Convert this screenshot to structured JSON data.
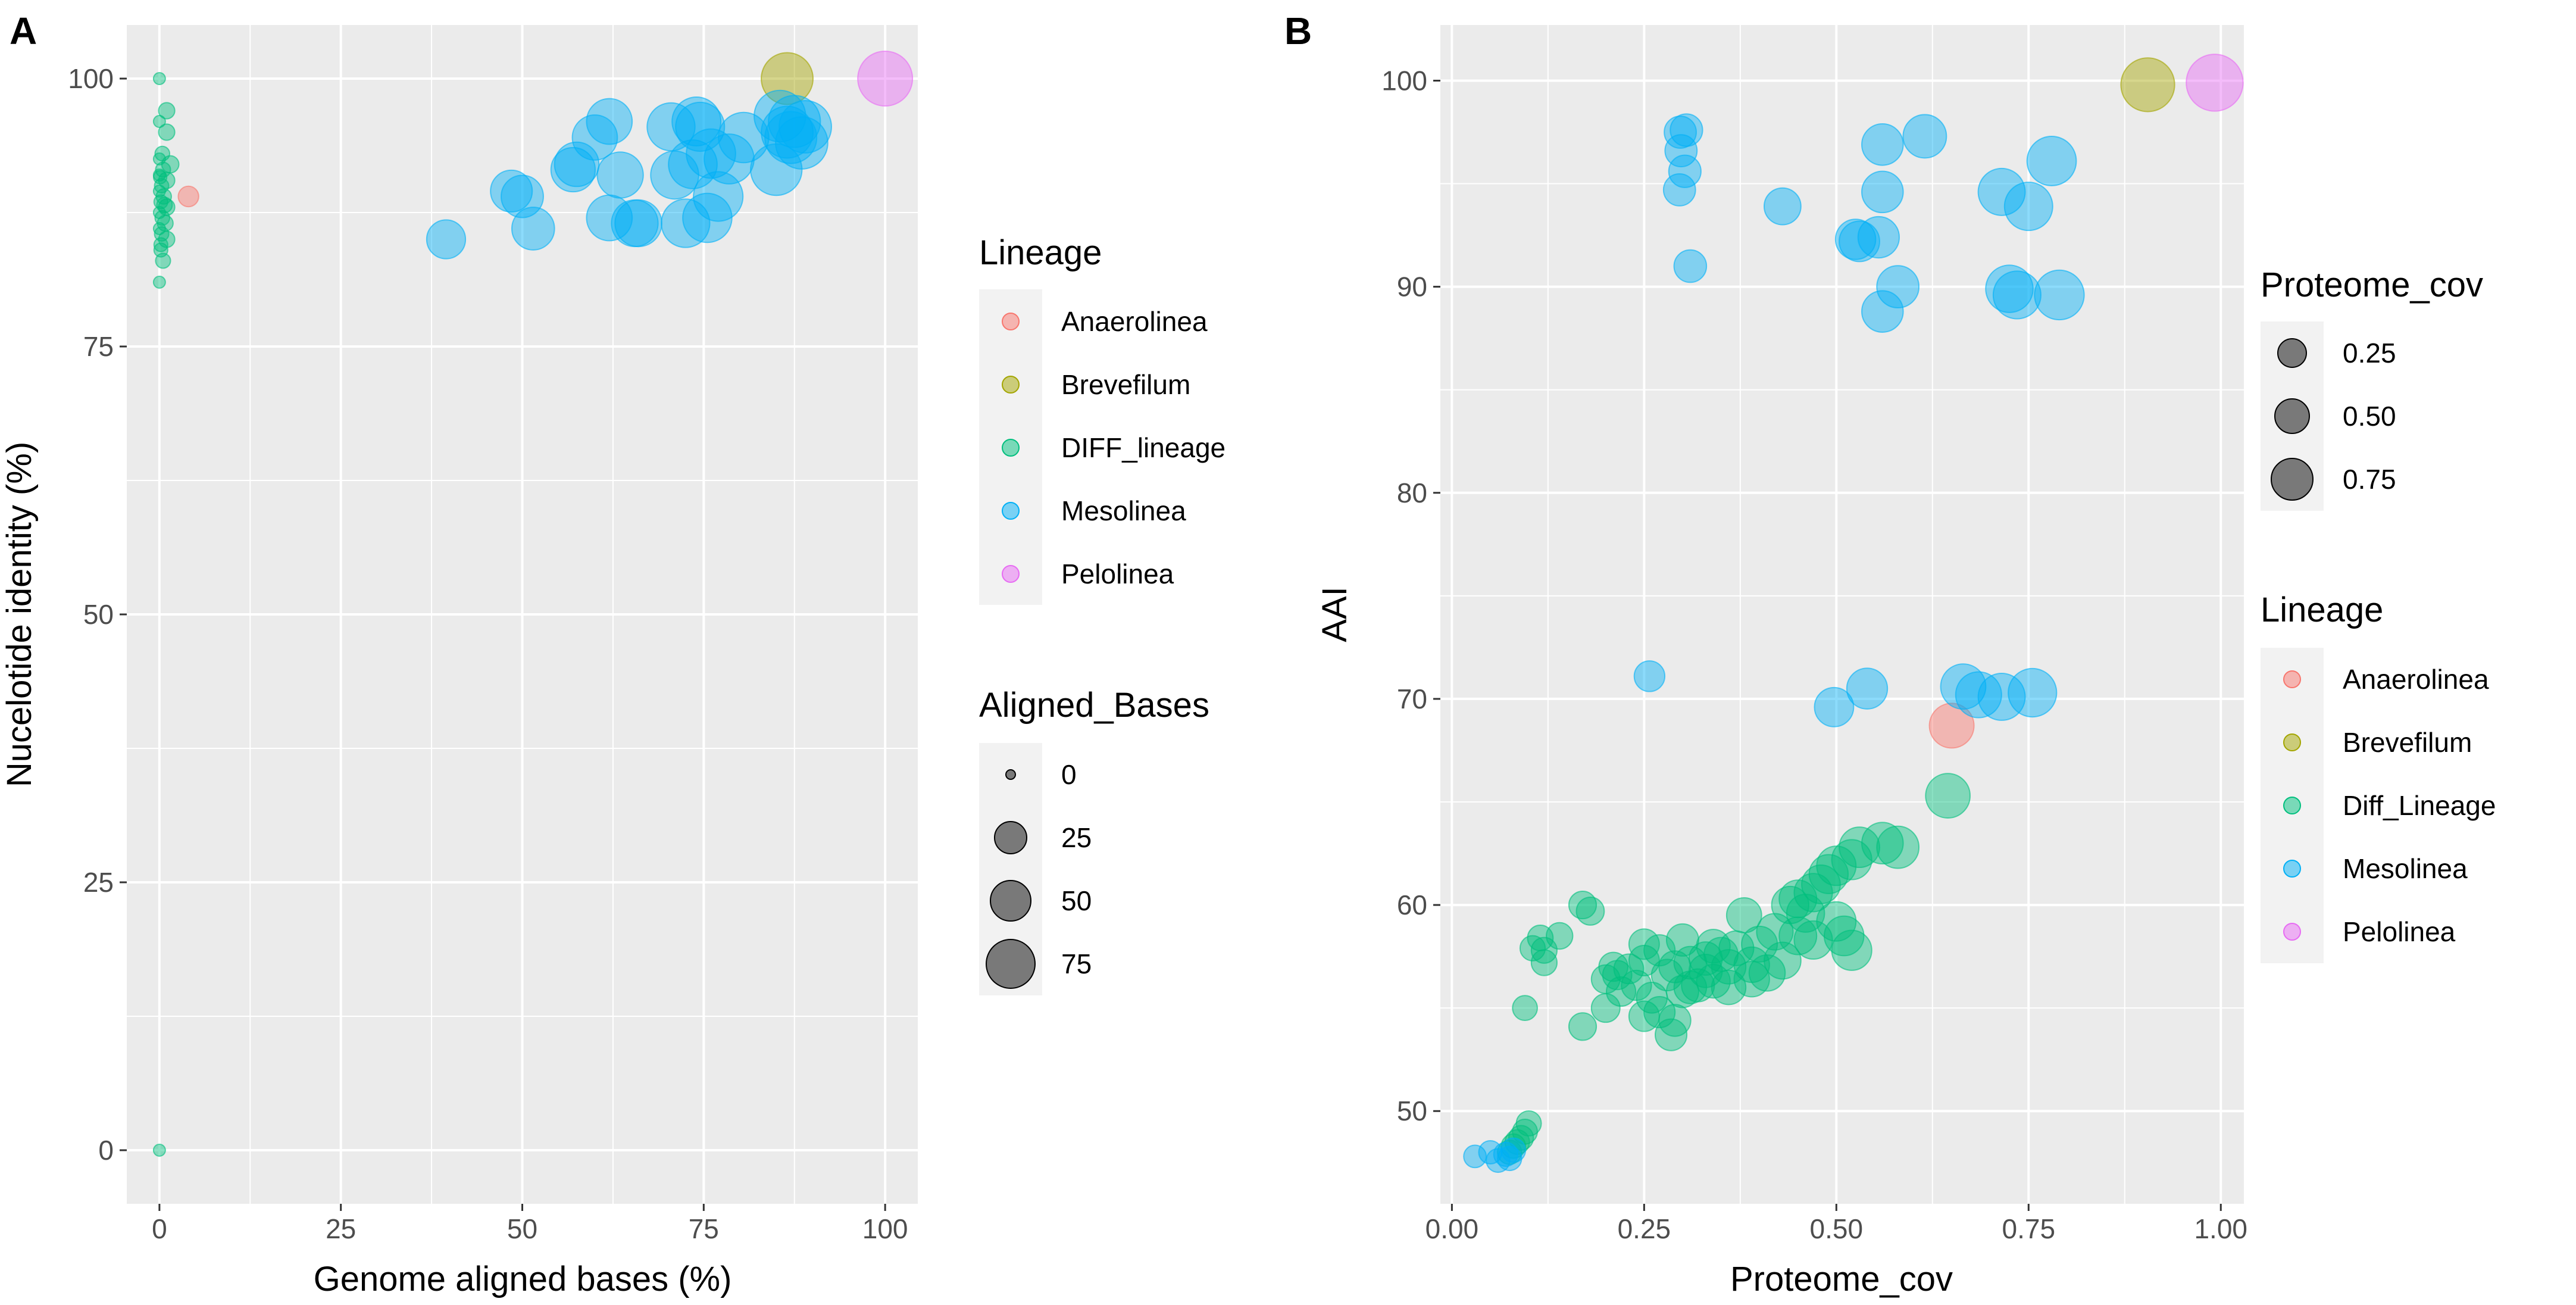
{
  "panels": [
    {
      "id": "A",
      "label": "A",
      "xlabel": "Genome aligned bases (%)",
      "ylabel": "Nucelotide identity (%)",
      "xticks": [
        "0",
        "25",
        "50",
        "75",
        "100"
      ],
      "yticks": [
        "0",
        "25",
        "50",
        "75",
        "100"
      ],
      "legend_lineage_title": "Lineage",
      "legend_lineage": [
        "Anaerolinea",
        "Brevefilum",
        "DIFF_lineage",
        "Mesolinea",
        "Pelolinea"
      ],
      "legend_size_title": "Aligned_Bases",
      "legend_size": [
        "0",
        "25",
        "50",
        "75"
      ]
    },
    {
      "id": "B",
      "label": "B",
      "xlabel": "Proteome_cov",
      "ylabel": "AAI",
      "xticks": [
        "0.00",
        "0.25",
        "0.50",
        "0.75",
        "1.00"
      ],
      "yticks": [
        "50",
        "60",
        "70",
        "80",
        "90",
        "100"
      ],
      "legend_size_title": "Proteome_cov",
      "legend_size": [
        "0.25",
        "0.50",
        "0.75"
      ],
      "legend_lineage_title": "Lineage",
      "legend_lineage": [
        "Anaerolinea",
        "Brevefilum",
        "Diff_Lineage",
        "Mesolinea",
        "Pelolinea"
      ]
    }
  ],
  "colors": {
    "Anaerolinea": "#F8766D",
    "Brevefilum": "#A3A500",
    "DIFF": "#00BF7D",
    "Mesolinea": "#00B0F6",
    "Pelolinea": "#E76BF3",
    "panel_bg": "#EBEBEB",
    "grid": "#FFFFFF"
  },
  "chart_data": [
    {
      "panel": "A",
      "type": "scatter",
      "title": "",
      "xlabel": "Genome aligned bases (%)",
      "ylabel": "Nucelotide identity (%)",
      "xlim": [
        -4.5,
        104.5
      ],
      "ylim": [
        -5,
        105
      ],
      "size_by": "Aligned_Bases",
      "series": [
        {
          "name": "Anaerolinea",
          "points": [
            [
              4,
              89,
              4
            ]
          ]
        },
        {
          "name": "Brevefilum",
          "points": [
            [
              86.5,
              100,
              86.5
            ]
          ]
        },
        {
          "name": "DIFF_lineage",
          "points": [
            [
              0,
              100,
              0
            ],
            [
              0,
              0,
              0
            ],
            [
              0,
              81,
              0
            ],
            [
              0.5,
              83,
              0.5
            ],
            [
              0.2,
              84,
              0.2
            ],
            [
              1,
              85,
              1
            ],
            [
              0.3,
              85.5,
              0.3
            ],
            [
              0,
              86,
              0
            ],
            [
              0.8,
              86.5,
              0.8
            ],
            [
              0.4,
              87,
              0.4
            ],
            [
              0,
              87.5,
              0
            ],
            [
              1,
              88,
              1
            ],
            [
              0.2,
              88.5,
              0.2
            ],
            [
              0.6,
              89,
              0.6
            ],
            [
              0,
              89.5,
              0
            ],
            [
              0.3,
              90,
              0.3
            ],
            [
              1,
              90.5,
              1
            ],
            [
              0,
              91,
              0
            ],
            [
              0.5,
              91.5,
              0.5
            ],
            [
              1.5,
              92,
              1.5
            ],
            [
              0,
              92.5,
              0
            ],
            [
              0.4,
              93,
              0.4
            ],
            [
              1,
              95,
              1
            ],
            [
              0,
              96,
              0
            ],
            [
              1,
              97,
              1
            ],
            [
              0.2,
              84.5,
              0.2
            ],
            [
              0.7,
              88.2,
              0.7
            ],
            [
              0.1,
              90.8,
              0.1
            ]
          ]
        },
        {
          "name": "Mesolinea",
          "points": [
            [
              39.5,
              85,
              39.5
            ],
            [
              48.5,
              89.5,
              48.5
            ],
            [
              50,
              89,
              50
            ],
            [
              51.5,
              86,
              51.5
            ],
            [
              57,
              91.5,
              57
            ],
            [
              57.5,
              92,
              57.5
            ],
            [
              60,
              94.5,
              60
            ],
            [
              62,
              96,
              62
            ],
            [
              62,
              87,
              62
            ],
            [
              63.5,
              91,
              63.5
            ],
            [
              65.5,
              86.5,
              65.5
            ],
            [
              66,
              86.5,
              66
            ],
            [
              70.5,
              95.5,
              70.5
            ],
            [
              71,
              91,
              71
            ],
            [
              72.5,
              86.5,
              72.5
            ],
            [
              73.5,
              92,
              73.5
            ],
            [
              74,
              96,
              74
            ],
            [
              74.5,
              95.5,
              74.5
            ],
            [
              75.5,
              87,
              75.5
            ],
            [
              76,
              93,
              76
            ],
            [
              77,
              89,
              77
            ],
            [
              78.5,
              92.5,
              78.5
            ],
            [
              80.5,
              94.5,
              80.5
            ],
            [
              85.5,
              96.5,
              85.5
            ],
            [
              85,
              91.5,
              85
            ],
            [
              86.5,
              95,
              86.5
            ],
            [
              87.5,
              96,
              87.5
            ],
            [
              88.5,
              94,
              88.5
            ],
            [
              89,
              95.5,
              89
            ],
            [
              87,
              94.5,
              87
            ]
          ]
        },
        {
          "name": "Pelolinea",
          "points": [
            [
              100,
              100,
              100
            ]
          ]
        }
      ]
    },
    {
      "panel": "B",
      "type": "scatter",
      "title": "",
      "xlabel": "Proteome_cov",
      "ylabel": "AAI",
      "xlim": [
        -0.015,
        1.03
      ],
      "ylim": [
        45.5,
        102.7
      ],
      "size_by": "Proteome_cov",
      "series": [
        {
          "name": "Anaerolinea",
          "points": [
            [
              0.65,
              68.7
            ]
          ]
        },
        {
          "name": "Brevefilum",
          "points": [
            [
              0.905,
              99.8
            ]
          ]
        },
        {
          "name": "Diff_Lineage",
          "points": [
            [
              0.645,
              65.3
            ],
            [
              0.53,
              62.8
            ],
            [
              0.56,
              63.0
            ],
            [
              0.58,
              62.8
            ],
            [
              0.52,
              62.2
            ],
            [
              0.5,
              61.9
            ],
            [
              0.49,
              61.5
            ],
            [
              0.48,
              61.0
            ],
            [
              0.47,
              60.6
            ],
            [
              0.45,
              60.3
            ],
            [
              0.44,
              60.0
            ],
            [
              0.46,
              59.6
            ],
            [
              0.5,
              59.2
            ],
            [
              0.38,
              59.5
            ],
            [
              0.42,
              58.7
            ],
            [
              0.47,
              58.3
            ],
            [
              0.51,
              58.5
            ],
            [
              0.52,
              57.8
            ],
            [
              0.4,
              58.1
            ],
            [
              0.37,
              57.9
            ],
            [
              0.35,
              57.6
            ],
            [
              0.33,
              57.4
            ],
            [
              0.31,
              57.2
            ],
            [
              0.29,
              57.0
            ],
            [
              0.27,
              57.8
            ],
            [
              0.25,
              57.3
            ],
            [
              0.23,
              56.9
            ],
            [
              0.21,
              57.0
            ],
            [
              0.2,
              56.4
            ],
            [
              0.22,
              55.8
            ],
            [
              0.26,
              55.5
            ],
            [
              0.3,
              55.8
            ],
            [
              0.32,
              56.1
            ],
            [
              0.34,
              56.3
            ],
            [
              0.36,
              56.0
            ],
            [
              0.28,
              56.6
            ],
            [
              0.39,
              57.1
            ],
            [
              0.43,
              57.3
            ],
            [
              0.41,
              56.7
            ],
            [
              0.45,
              58.5
            ],
            [
              0.36,
              57.0
            ],
            [
              0.33,
              56.8
            ],
            [
              0.27,
              54.8
            ],
            [
              0.25,
              54.6
            ],
            [
              0.29,
              54.4
            ],
            [
              0.285,
              53.7
            ],
            [
              0.2,
              55.0
            ],
            [
              0.17,
              54.1
            ],
            [
              0.095,
              55.0
            ],
            [
              0.17,
              60.0
            ],
            [
              0.18,
              59.7
            ],
            [
              0.14,
              58.5
            ],
            [
              0.115,
              58.4
            ],
            [
              0.12,
              57.8
            ],
            [
              0.12,
              57.2
            ],
            [
              0.105,
              57.9
            ],
            [
              0.25,
              58.1
            ],
            [
              0.3,
              58.3
            ],
            [
              0.34,
              58.0
            ],
            [
              0.39,
              56.4
            ],
            [
              0.31,
              56.0
            ],
            [
              0.24,
              56.1
            ],
            [
              0.215,
              56.6
            ],
            [
              0.1,
              49.4
            ],
            [
              0.095,
              49.0
            ],
            [
              0.09,
              48.7
            ],
            [
              0.085,
              48.5
            ],
            [
              0.08,
              48.3
            ],
            [
              0.075,
              48.0
            ]
          ]
        },
        {
          "name": "Mesolinea",
          "points": [
            [
              0.297,
              97.5
            ],
            [
              0.305,
              97.6
            ],
            [
              0.298,
              96.6
            ],
            [
              0.303,
              95.6
            ],
            [
              0.296,
              94.7
            ],
            [
              0.31,
              91.0
            ],
            [
              0.43,
              93.9
            ],
            [
              0.525,
              92.3
            ],
            [
              0.53,
              92.2
            ],
            [
              0.555,
              92.4
            ],
            [
              0.56,
              94.6
            ],
            [
              0.56,
              96.9
            ],
            [
              0.615,
              97.3
            ],
            [
              0.715,
              94.6
            ],
            [
              0.75,
              93.9
            ],
            [
              0.78,
              96.1
            ],
            [
              0.58,
              90.0
            ],
            [
              0.56,
              88.8
            ],
            [
              0.725,
              89.9
            ],
            [
              0.735,
              89.6
            ],
            [
              0.79,
              89.6
            ],
            [
              0.257,
              71.1
            ],
            [
              0.497,
              69.6
            ],
            [
              0.54,
              70.5
            ],
            [
              0.665,
              70.6
            ],
            [
              0.685,
              70.2
            ],
            [
              0.715,
              70.1
            ],
            [
              0.755,
              70.3
            ],
            [
              0.03,
              47.8
            ],
            [
              0.05,
              48.0
            ],
            [
              0.06,
              47.6
            ],
            [
              0.07,
              47.9
            ],
            [
              0.075,
              47.7
            ],
            [
              0.08,
              48.1
            ]
          ]
        },
        {
          "name": "Pelolinea",
          "points": [
            [
              0.992,
              99.9
            ]
          ]
        }
      ]
    }
  ]
}
